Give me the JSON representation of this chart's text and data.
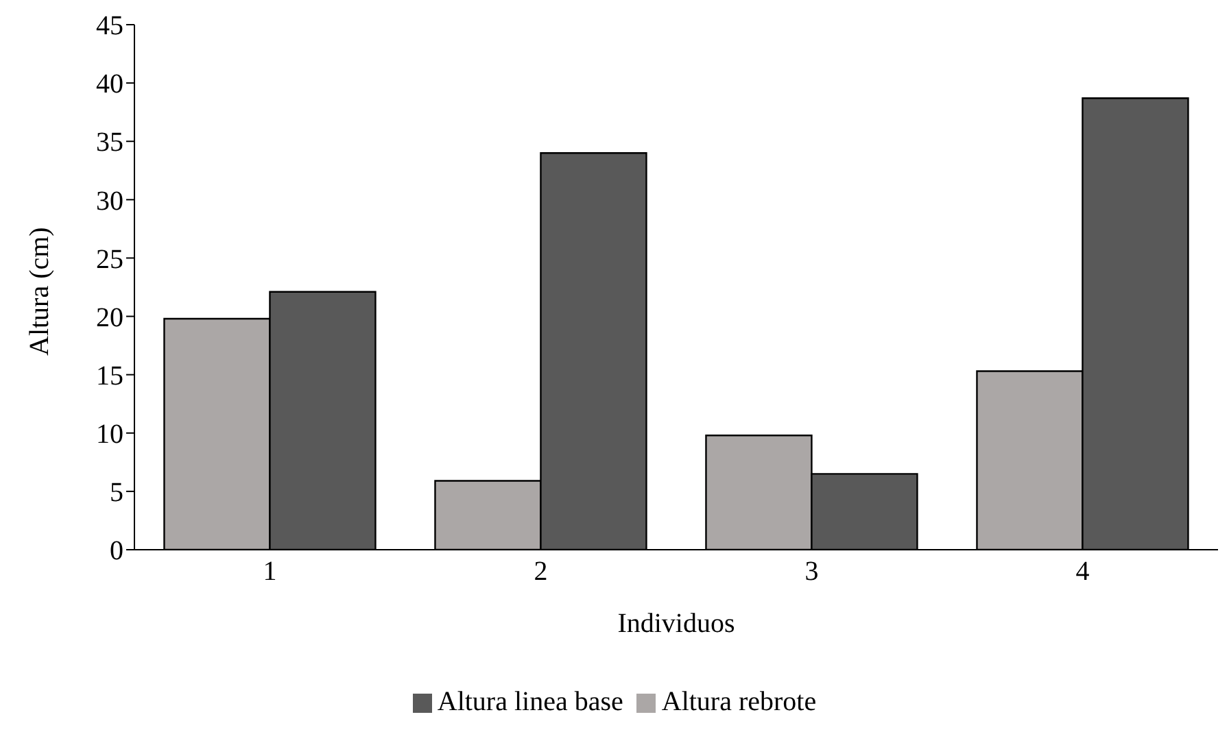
{
  "chart_data": {
    "type": "bar",
    "xlabel": "Individuos",
    "ylabel": "Altura (cm)",
    "categories": [
      "1",
      "2",
      "3",
      "4"
    ],
    "series": [
      {
        "name": "Altura rebrote",
        "color": "#aba7a6",
        "values": [
          19.8,
          5.9,
          9.8,
          15.3
        ]
      },
      {
        "name": "Altura linea base",
        "color": "#595959",
        "values": [
          22.1,
          34.0,
          6.5,
          38.7
        ]
      }
    ],
    "ylim": [
      0,
      45
    ],
    "yticks": [
      0,
      5,
      10,
      15,
      20,
      25,
      30,
      35,
      40,
      45
    ],
    "grid": false,
    "legend": "bottom"
  }
}
